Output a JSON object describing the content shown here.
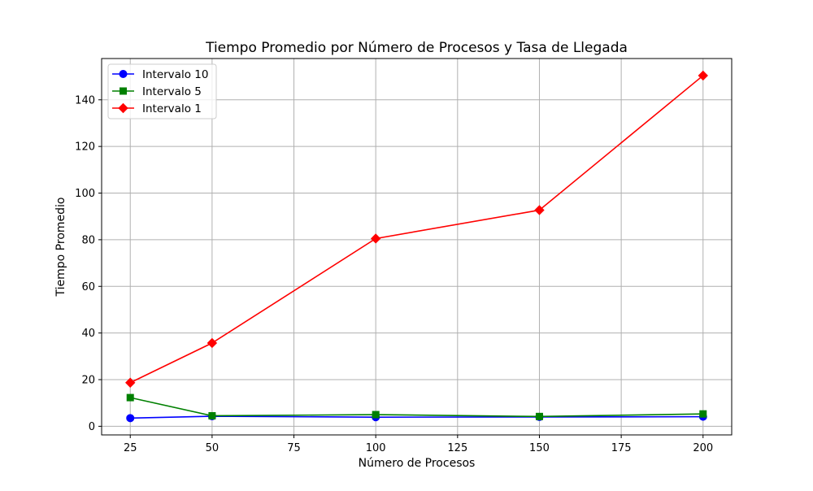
{
  "chart_data": {
    "type": "line",
    "title": "Tiempo Promedio por Número de Procesos y Tasa de Llegada",
    "xlabel": "Número de Procesos",
    "ylabel": "Tiempo Promedio",
    "x": [
      25,
      50,
      100,
      150,
      200
    ],
    "xlim": [
      16.25,
      208.75
    ],
    "ylim": [
      -3.7,
      157.7
    ],
    "xticks": [
      25,
      50,
      75,
      100,
      125,
      150,
      175,
      200
    ],
    "yticks": [
      0,
      20,
      40,
      60,
      80,
      100,
      120,
      140
    ],
    "grid": true,
    "legend_position": "upper left",
    "series": [
      {
        "name": "Intervalo 10",
        "color": "#0000ff",
        "marker": "circle",
        "values": [
          3.5,
          4.3,
          3.9,
          4.0,
          4.1
        ]
      },
      {
        "name": "Intervalo 5",
        "color": "#008000",
        "marker": "square",
        "values": [
          12.3,
          4.5,
          5.0,
          4.2,
          5.3
        ]
      },
      {
        "name": "Intervalo 1",
        "color": "#ff0000",
        "marker": "diamond",
        "values": [
          18.7,
          35.7,
          80.5,
          92.7,
          150.4
        ]
      }
    ]
  }
}
